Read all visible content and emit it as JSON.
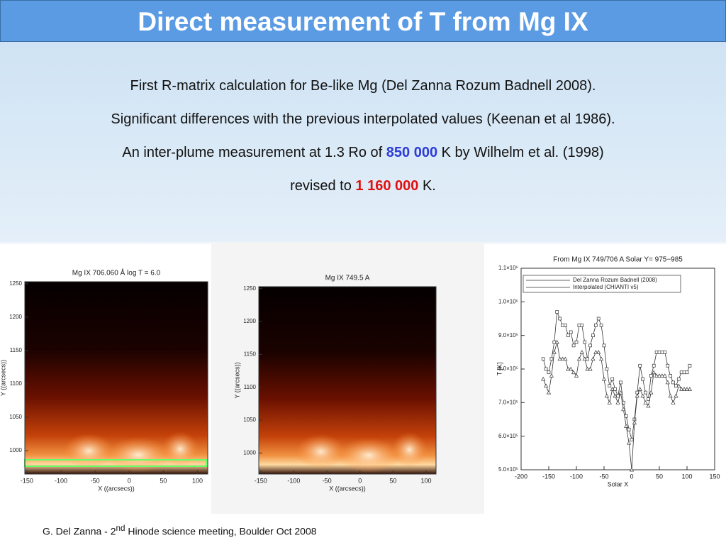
{
  "header": {
    "title": "Direct measurement of T from Mg IX"
  },
  "body": {
    "lines": [
      [
        "First R-matrix calculation for Be-like Mg (Del Zanna Rozum Badnell 2008)."
      ],
      [
        "Significant differences with the previous interpolated values (Keenan et al 1986)."
      ],
      [
        "An inter-plume measurement at 1.3 Ro of ",
        "850 000",
        " K by Wilhelm et al. (1998)"
      ],
      [
        "revised to ",
        "1 160 000",
        " K."
      ]
    ]
  },
  "images": [
    {
      "title": "Mg IX 706.060  Å log T = 6.0",
      "xlabel": "X ((arcsecs))",
      "ylabel": "Y ((arcsecs))",
      "xlim": [
        -153,
        115
      ],
      "ylim": [
        965,
        1253
      ],
      "xticks": [
        -150,
        -100,
        -50,
        0,
        50,
        100
      ],
      "yticks": [
        1000,
        1050,
        1100,
        1150,
        1200,
        1250
      ]
    },
    {
      "title": "Mg IX 749.5 A",
      "xlabel": "X ((arcsecs))",
      "ylabel": "Y ((arcsecs))",
      "xlim": [
        -153,
        115
      ],
      "ylim": [
        968,
        1253
      ],
      "xticks": [
        -150,
        -100,
        -50,
        0,
        50,
        100
      ],
      "yticks": [
        1000,
        1050,
        1100,
        1150,
        1200,
        1250
      ]
    }
  ],
  "chart_data": {
    "type": "line",
    "title": "From Mg IX 749/706 A   Solar Y= 975−985",
    "xlabel": "Solar X",
    "ylabel": "T [K]",
    "xlim": [
      -200,
      150
    ],
    "xticks": [
      -200,
      -150,
      -100,
      -50,
      0,
      50,
      100,
      150
    ],
    "ylim": [
      500000,
      1100000
    ],
    "yticks": [
      {
        "value": 500000,
        "label": "5.0×10⁵"
      },
      {
        "value": 600000,
        "label": "6.0×10⁵"
      },
      {
        "value": 700000,
        "label": "7.0×10⁵"
      },
      {
        "value": 800000,
        "label": "8.0×10⁵"
      },
      {
        "value": 900000,
        "label": "9.0×10⁵"
      },
      {
        "value": 1000000,
        "label": "1.0×10⁶"
      },
      {
        "value": 1100000,
        "label": "1.1×10⁶"
      }
    ],
    "legend": "upper left",
    "x": [
      -160,
      -155,
      -150,
      -145,
      -140,
      -135,
      -130,
      -125,
      -120,
      -115,
      -110,
      -105,
      -100,
      -95,
      -90,
      -85,
      -80,
      -75,
      -70,
      -65,
      -60,
      -55,
      -50,
      -45,
      -40,
      -35,
      -30,
      -25,
      -20,
      -15,
      -10,
      -5,
      0,
      5,
      10,
      15,
      20,
      25,
      30,
      35,
      40,
      45,
      50,
      55,
      60,
      65,
      70,
      75,
      80,
      85,
      90,
      95,
      100,
      105
    ],
    "series": [
      {
        "name": "Del Zanna Rozum Badnell (2008)",
        "marker": "square",
        "color": "#333333",
        "values": [
          830000,
          800000,
          790000,
          830000,
          880000,
          970000,
          950000,
          930000,
          930000,
          900000,
          910000,
          870000,
          880000,
          930000,
          930000,
          880000,
          830000,
          870000,
          900000,
          930000,
          950000,
          930000,
          870000,
          800000,
          750000,
          770000,
          740000,
          720000,
          760000,
          700000,
          660000,
          620000,
          590000,
          650000,
          730000,
          810000,
          770000,
          730000,
          710000,
          780000,
          810000,
          850000,
          850000,
          850000,
          850000,
          810000,
          780000,
          760000,
          750000,
          770000,
          790000,
          790000,
          790000,
          810000
        ]
      },
      {
        "name": "Interpolated   (CHIANTI v5)",
        "marker": "triangle",
        "color": "#333333",
        "values": [
          770000,
          750000,
          730000,
          780000,
          850000,
          880000,
          830000,
          830000,
          830000,
          800000,
          800000,
          790000,
          780000,
          830000,
          850000,
          830000,
          800000,
          800000,
          830000,
          850000,
          850000,
          830000,
          770000,
          720000,
          700000,
          740000,
          720000,
          700000,
          730000,
          680000,
          630000,
          580000,
          500000,
          640000,
          720000,
          740000,
          720000,
          700000,
          690000,
          730000,
          790000,
          780000,
          780000,
          780000,
          780000,
          760000,
          720000,
          700000,
          720000,
          750000,
          740000,
          740000,
          740000,
          740000
        ]
      }
    ]
  },
  "footer": {
    "text": [
      "G. Del Zanna   - 2",
      "nd",
      " Hinode science meeting, Boulder Oct  2008"
    ]
  }
}
